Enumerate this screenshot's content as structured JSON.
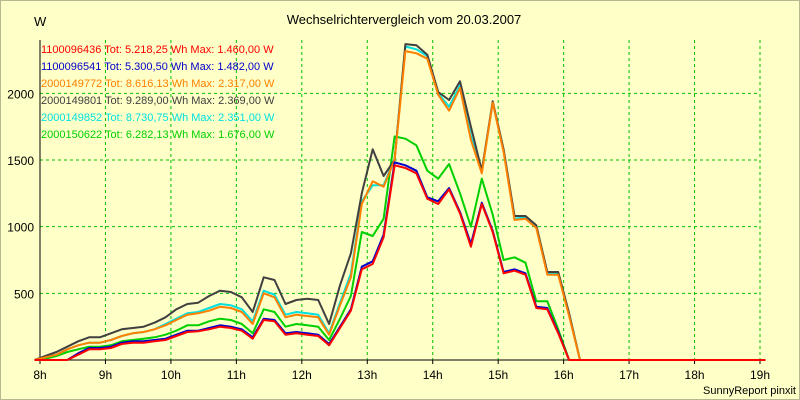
{
  "chart_data": {
    "type": "line",
    "title": "Wechselrichtervergleich vom 20.03.2007",
    "ylabel": "W",
    "xlabel": "",
    "footer": "SunnyReport pinxit",
    "ylim": [
      0,
      2400
    ],
    "xlim": [
      8,
      19
    ],
    "y_ticks": [
      500,
      1000,
      1500,
      2000
    ],
    "x_ticks": [
      {
        "v": 8,
        "label": "8h"
      },
      {
        "v": 9,
        "label": "9h"
      },
      {
        "v": 10,
        "label": "10h"
      },
      {
        "v": 11,
        "label": "11h"
      },
      {
        "v": 12,
        "label": "12h"
      },
      {
        "v": 13,
        "label": "13h"
      },
      {
        "v": 14,
        "label": "14h"
      },
      {
        "v": 15,
        "label": "15h"
      },
      {
        "v": 16,
        "label": "16h"
      },
      {
        "v": 17,
        "label": "17h"
      },
      {
        "v": 18,
        "label": "18h"
      },
      {
        "v": 19,
        "label": "19h"
      }
    ],
    "grid": true,
    "legend_position": "top-left",
    "x": [
      7.917,
      8.083,
      8.25,
      8.417,
      8.583,
      8.75,
      8.917,
      9.083,
      9.25,
      9.417,
      9.583,
      9.75,
      9.917,
      10.083,
      10.25,
      10.417,
      10.583,
      10.75,
      10.917,
      11.083,
      11.25,
      11.417,
      11.583,
      11.75,
      11.917,
      12.083,
      12.25,
      12.417,
      12.583,
      12.75,
      12.917,
      13.083,
      13.25,
      13.417,
      13.583,
      13.75,
      13.917,
      14.083,
      14.25,
      14.417,
      14.583,
      14.75,
      14.917,
      15.083,
      15.25,
      15.417,
      15.583,
      15.75,
      15.917,
      16.083,
      16.25,
      16.417,
      16.583,
      16.75,
      16.917,
      17.083,
      17.25,
      17.417,
      17.583,
      17.75,
      17.917,
      18.083,
      18.25,
      18.417,
      18.583,
      18.75,
      18.917,
      19.083
    ],
    "series": [
      {
        "legend": "1100096436 Tot: 5.218,25 Wh Max: 1.460,00 W",
        "color": "#ff0000",
        "values": [
          0,
          0,
          0,
          0,
          40,
          80,
          80,
          90,
          120,
          130,
          130,
          140,
          150,
          180,
          210,
          215,
          230,
          250,
          240,
          220,
          160,
          300,
          290,
          190,
          200,
          190,
          180,
          110,
          240,
          370,
          680,
          720,
          920,
          1460,
          1440,
          1400,
          1210,
          1170,
          1280,
          1100,
          850,
          1170,
          960,
          650,
          670,
          640,
          390,
          380,
          200,
          0,
          0,
          0,
          0,
          0,
          0,
          0,
          0,
          0,
          0,
          0,
          0,
          0,
          0,
          0,
          0,
          0,
          0,
          0
        ]
      },
      {
        "legend": "1100096541 Tot: 5.300,50 Wh Max: 1.482,00 W",
        "color": "#0000cc",
        "values": [
          0,
          0,
          0,
          0,
          50,
          90,
          90,
          100,
          130,
          140,
          140,
          150,
          160,
          190,
          220,
          220,
          240,
          260,
          250,
          230,
          170,
          310,
          300,
          200,
          210,
          200,
          190,
          120,
          250,
          380,
          700,
          740,
          940,
          1482,
          1460,
          1420,
          1220,
          1190,
          1290,
          1110,
          870,
          1180,
          970,
          660,
          680,
          650,
          400,
          390,
          210,
          0,
          0,
          0,
          0,
          0,
          0,
          0,
          0,
          0,
          0,
          0,
          0,
          0,
          0,
          0,
          0,
          0,
          0,
          0
        ]
      },
      {
        "legend": "2000149772 Tot: 8.616,13 Wh Max: 2.317,00 W",
        "color": "#ff8000",
        "values": [
          0,
          20,
          40,
          80,
          110,
          130,
          130,
          150,
          180,
          200,
          210,
          230,
          260,
          300,
          340,
          350,
          370,
          400,
          390,
          360,
          270,
          500,
          470,
          320,
          340,
          330,
          320,
          190,
          410,
          620,
          1170,
          1340,
          1300,
          1500,
          2317,
          2300,
          2260,
          1990,
          1870,
          2040,
          1650,
          1400,
          1930,
          1560,
          1050,
          1060,
          990,
          640,
          640,
          330,
          0,
          0,
          0,
          0,
          0,
          0,
          0,
          0,
          0,
          0,
          0,
          0,
          0,
          0,
          0,
          0,
          0,
          0
        ]
      },
      {
        "legend": "2000149801 Tot: 9.289,00 Wh Max: 2.369,00 W",
        "color": "#404040",
        "values": [
          0,
          30,
          60,
          100,
          140,
          170,
          170,
          200,
          230,
          240,
          250,
          280,
          320,
          380,
          420,
          430,
          480,
          520,
          510,
          470,
          360,
          620,
          600,
          420,
          450,
          460,
          450,
          270,
          560,
          800,
          1250,
          1580,
          1380,
          1500,
          2369,
          2360,
          2290,
          2010,
          1950,
          2090,
          1750,
          1420,
          1940,
          1580,
          1080,
          1080,
          1010,
          660,
          660,
          350,
          0,
          0,
          0,
          0,
          0,
          0,
          0,
          0,
          0,
          0,
          0,
          0,
          0,
          0,
          0,
          0,
          0,
          0
        ]
      },
      {
        "legend": "2000149852 Tot: 8.730,75 Wh Max: 2.351,00 W",
        "color": "#00e0e0",
        "values": [
          0,
          20,
          40,
          80,
          110,
          130,
          130,
          150,
          180,
          200,
          210,
          230,
          270,
          310,
          350,
          360,
          390,
          420,
          410,
          380,
          290,
          520,
          490,
          340,
          360,
          350,
          340,
          200,
          430,
          650,
          1190,
          1310,
          1310,
          1510,
          2351,
          2330,
          2280,
          2000,
          1900,
          2060,
          1680,
          1410,
          1930,
          1570,
          1060,
          1070,
          1000,
          650,
          650,
          340,
          0,
          0,
          0,
          0,
          0,
          0,
          0,
          0,
          0,
          0,
          0,
          0,
          0,
          0,
          0,
          0,
          0,
          0
        ]
      },
      {
        "legend": "2000150622 Tot: 6.282,13 Wh Max: 1.676,00 W",
        "color": "#00d000",
        "values": [
          0,
          10,
          30,
          60,
          80,
          100,
          100,
          110,
          140,
          150,
          160,
          170,
          190,
          220,
          260,
          260,
          290,
          310,
          300,
          270,
          200,
          380,
          360,
          250,
          270,
          260,
          250,
          150,
          310,
          480,
          960,
          930,
          1060,
          1676,
          1660,
          1610,
          1420,
          1360,
          1470,
          1250,
          1000,
          1360,
          1090,
          750,
          770,
          730,
          440,
          440,
          230,
          0,
          0,
          0,
          0,
          0,
          0,
          0,
          0,
          0,
          0,
          0,
          0,
          0,
          0,
          0,
          0,
          0,
          0,
          0
        ]
      }
    ]
  }
}
